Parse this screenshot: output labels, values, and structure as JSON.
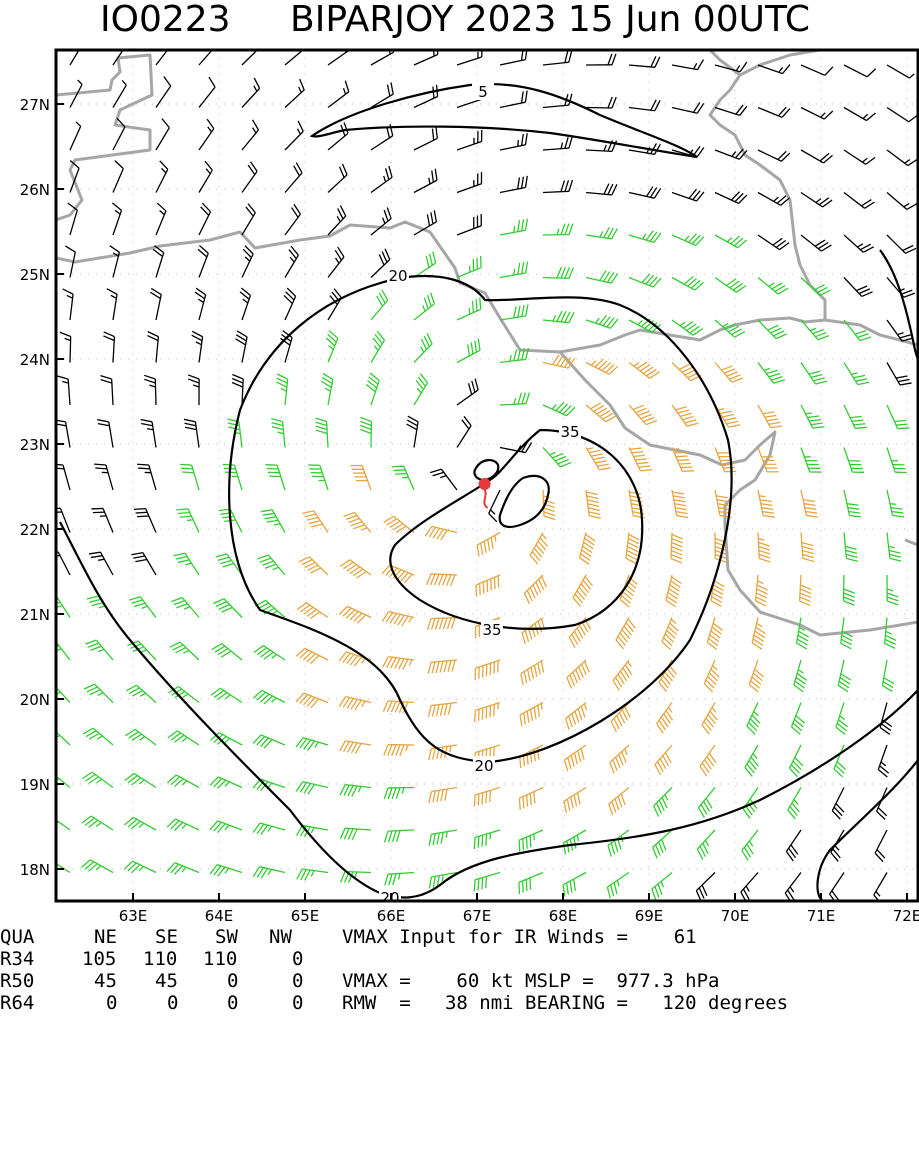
{
  "title": {
    "storm_id": "IO0223",
    "text": "BIPARJOY 2023 15 Jun 00UTC"
  },
  "chart_data": {
    "type": "wind-barb-map",
    "lon_range": [
      62.2,
      72.1
    ],
    "lat_range": [
      17.6,
      27.6
    ],
    "x_ticks": [
      "63E",
      "64E",
      "65E",
      "66E",
      "67E",
      "68E",
      "69E",
      "70E",
      "71E",
      "72E"
    ],
    "y_ticks": [
      "18N",
      "19N",
      "20N",
      "21N",
      "22N",
      "23N",
      "24N",
      "25N",
      "26N",
      "27N"
    ],
    "contour_labels": [
      "5",
      "20",
      "20",
      "20",
      "35",
      "35"
    ],
    "contour_levels_kt": [
      5,
      20,
      35
    ],
    "center": {
      "lon": 67.1,
      "lat": 22.6
    },
    "barb_colors": {
      "below_34kt": "#000000",
      "34_to_49kt": "#33cc33",
      "50kt_plus": "#e5a540"
    },
    "grid": "dotted",
    "coastline_color": "#a6a6a6",
    "center_marker_color": "#e53a3a"
  },
  "table": {
    "header": [
      "QUA",
      "NE",
      "SE",
      "SW",
      "NW"
    ],
    "rows": [
      {
        "label": "R34",
        "values": [
          "105",
          "110",
          "110",
          "0"
        ]
      },
      {
        "label": "R50",
        "values": [
          "45",
          "45",
          "0",
          "0"
        ]
      },
      {
        "label": "R64",
        "values": [
          "0",
          "0",
          "0",
          "0"
        ]
      }
    ],
    "info_line_1": "VMAX Input for IR Winds =    61",
    "info_line_2": "VMAX =    60 kt MSLP =  977.3 hPa",
    "info_line_3": "RMW  =   38 nmi BEARING =   120 degrees"
  }
}
